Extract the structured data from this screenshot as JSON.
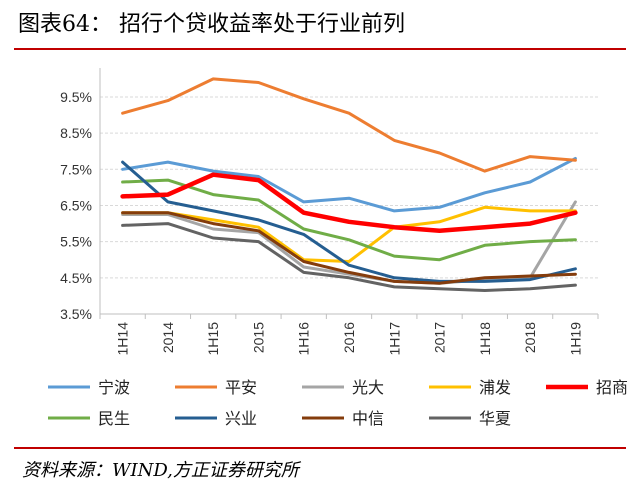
{
  "figure": {
    "title": "图表64： 招行个贷收益率处于行业前列",
    "source": "资料来源：WIND,方正证券研究所"
  },
  "chart_data": {
    "type": "line",
    "categories": [
      "1H14",
      "2014",
      "1H15",
      "2015",
      "1H16",
      "2016",
      "1H17",
      "2017",
      "1H18",
      "2018",
      "1H19"
    ],
    "y_ticks": [
      "3.5%",
      "4.5%",
      "5.5%",
      "6.5%",
      "7.5%",
      "8.5%",
      "9.5%"
    ],
    "ylim": [
      3.5,
      10.3
    ],
    "grid": true,
    "legend_position": "bottom",
    "series": [
      {
        "name": "宁波",
        "color": "#5b9bd5",
        "values": [
          7.5,
          7.7,
          7.45,
          7.3,
          6.6,
          6.7,
          6.35,
          6.45,
          6.85,
          7.15,
          7.8
        ]
      },
      {
        "name": "平安",
        "color": "#ed7d31",
        "values": [
          9.05,
          9.4,
          10.0,
          9.9,
          9.45,
          9.05,
          8.3,
          7.95,
          7.45,
          7.85,
          7.75
        ]
      },
      {
        "name": "光大",
        "color": "#a5a5a5",
        "values": [
          6.25,
          6.25,
          5.85,
          5.75,
          4.8,
          4.6,
          4.4,
          4.35,
          4.45,
          4.5,
          6.6
        ]
      },
      {
        "name": "浦发",
        "color": "#ffc000",
        "values": [
          6.3,
          6.3,
          6.1,
          5.9,
          5.0,
          4.95,
          5.9,
          6.05,
          6.45,
          6.35,
          6.35
        ]
      },
      {
        "name": "招商",
        "color": "#ff0000",
        "values": [
          6.75,
          6.8,
          7.35,
          7.2,
          6.3,
          6.05,
          5.9,
          5.8,
          5.9,
          6.0,
          6.3
        ]
      },
      {
        "name": "民生",
        "color": "#70ad47",
        "values": [
          7.15,
          7.2,
          6.8,
          6.65,
          5.85,
          5.55,
          5.1,
          5.0,
          5.4,
          5.5,
          5.55
        ]
      },
      {
        "name": "兴业",
        "color": "#255e91",
        "values": [
          7.7,
          6.6,
          6.35,
          6.1,
          5.7,
          4.85,
          4.5,
          4.4,
          4.4,
          4.45,
          4.75
        ]
      },
      {
        "name": "中信",
        "color": "#843c0c",
        "values": [
          6.3,
          6.3,
          6.0,
          5.8,
          4.95,
          4.65,
          4.4,
          4.35,
          4.5,
          4.55,
          4.6
        ]
      },
      {
        "name": "华夏",
        "color": "#636363",
        "values": [
          5.95,
          6.0,
          5.6,
          5.5,
          4.65,
          4.5,
          4.25,
          4.2,
          4.15,
          4.2,
          4.3
        ]
      }
    ]
  }
}
